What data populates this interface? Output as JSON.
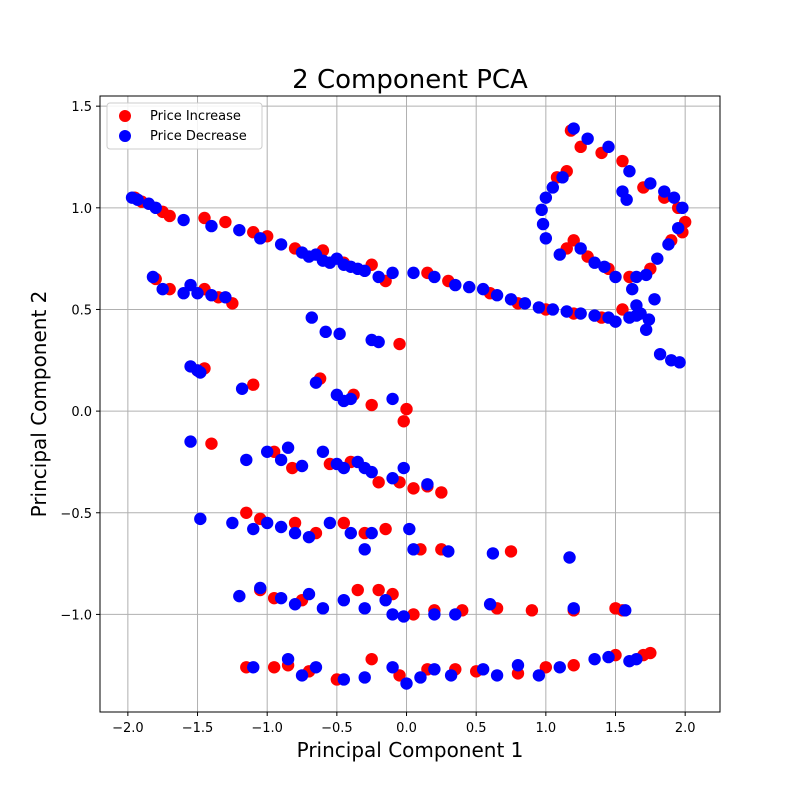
{
  "chart_data": {
    "type": "scatter",
    "title": "2 Component PCA",
    "xlabel": "Principal Component 1",
    "ylabel": "Principal Component 2",
    "xlim": [
      -2.2,
      2.25
    ],
    "ylim": [
      -1.48,
      1.55
    ],
    "x_ticks": [
      -2.0,
      -1.5,
      -1.0,
      -0.5,
      0.0,
      0.5,
      1.0,
      1.5,
      2.0
    ],
    "x_tick_labels": [
      "−2.0",
      "−1.5",
      "−1.0",
      "−0.5",
      "0.0",
      "0.5",
      "1.0",
      "1.5",
      "2.0"
    ],
    "y_ticks": [
      -1.0,
      -0.5,
      0.0,
      0.5,
      1.0,
      1.5
    ],
    "y_tick_labels": [
      "−1.0",
      "−0.5",
      "0.0",
      "0.5",
      "1.0",
      "1.5"
    ],
    "grid": true,
    "legend_position": "top-left",
    "series": [
      {
        "name": "Price Increase",
        "color": "#ff0000",
        "points": [
          [
            -1.95,
            1.05
          ],
          [
            -1.9,
            1.03
          ],
          [
            -1.75,
            0.98
          ],
          [
            -1.7,
            0.96
          ],
          [
            -1.45,
            0.95
          ],
          [
            -1.3,
            0.93
          ],
          [
            -1.1,
            0.88
          ],
          [
            -1.0,
            0.86
          ],
          [
            -0.8,
            0.8
          ],
          [
            -0.6,
            0.79
          ],
          [
            -0.45,
            0.73
          ],
          [
            -0.25,
            0.72
          ],
          [
            -0.15,
            0.64
          ],
          [
            0.15,
            0.68
          ],
          [
            0.3,
            0.64
          ],
          [
            0.6,
            0.58
          ],
          [
            0.8,
            0.53
          ],
          [
            1.0,
            0.5
          ],
          [
            1.2,
            0.48
          ],
          [
            1.4,
            0.46
          ],
          [
            1.55,
            0.5
          ],
          [
            1.18,
            1.38
          ],
          [
            1.25,
            1.3
          ],
          [
            1.4,
            1.27
          ],
          [
            1.55,
            1.23
          ],
          [
            1.7,
            1.1
          ],
          [
            1.85,
            1.05
          ],
          [
            1.95,
            1.0
          ],
          [
            2.0,
            0.93
          ],
          [
            1.98,
            0.88
          ],
          [
            1.9,
            0.84
          ],
          [
            1.75,
            0.7
          ],
          [
            1.6,
            0.66
          ],
          [
            1.45,
            0.7
          ],
          [
            1.3,
            0.76
          ],
          [
            1.2,
            0.84
          ],
          [
            1.15,
            0.8
          ],
          [
            1.08,
            1.15
          ],
          [
            1.15,
            1.18
          ],
          [
            -1.8,
            0.65
          ],
          [
            -1.7,
            0.6
          ],
          [
            -1.45,
            0.6
          ],
          [
            -1.35,
            0.56
          ],
          [
            -1.25,
            0.53
          ],
          [
            -1.5,
            0.2
          ],
          [
            -1.45,
            0.21
          ],
          [
            -1.1,
            0.13
          ],
          [
            -0.62,
            0.16
          ],
          [
            -0.38,
            0.08
          ],
          [
            -0.25,
            0.03
          ],
          [
            -0.05,
            0.33
          ],
          [
            0.0,
            0.01
          ],
          [
            -0.02,
            -0.05
          ],
          [
            -1.4,
            -0.16
          ],
          [
            -0.95,
            -0.2
          ],
          [
            -0.82,
            -0.28
          ],
          [
            -0.55,
            -0.26
          ],
          [
            -0.4,
            -0.25
          ],
          [
            -0.2,
            -0.35
          ],
          [
            -0.05,
            -0.35
          ],
          [
            0.05,
            -0.38
          ],
          [
            0.15,
            -0.37
          ],
          [
            0.25,
            -0.4
          ],
          [
            -1.15,
            -0.5
          ],
          [
            -1.05,
            -0.53
          ],
          [
            -0.8,
            -0.55
          ],
          [
            -0.65,
            -0.6
          ],
          [
            -0.45,
            -0.55
          ],
          [
            -0.3,
            -0.6
          ],
          [
            -0.15,
            -0.58
          ],
          [
            0.1,
            -0.68
          ],
          [
            0.25,
            -0.68
          ],
          [
            0.75,
            -0.69
          ],
          [
            -1.05,
            -0.88
          ],
          [
            -0.95,
            -0.92
          ],
          [
            -0.75,
            -0.93
          ],
          [
            -0.35,
            -0.88
          ],
          [
            -0.2,
            -0.88
          ],
          [
            -0.1,
            -0.9
          ],
          [
            0.05,
            -1.0
          ],
          [
            0.2,
            -0.98
          ],
          [
            0.4,
            -0.98
          ],
          [
            0.65,
            -0.97
          ],
          [
            0.9,
            -0.98
          ],
          [
            1.2,
            -0.98
          ],
          [
            1.5,
            -0.97
          ],
          [
            1.55,
            -0.98
          ],
          [
            -1.15,
            -1.26
          ],
          [
            -0.95,
            -1.26
          ],
          [
            -0.85,
            -1.25
          ],
          [
            -0.7,
            -1.28
          ],
          [
            -0.5,
            -1.32
          ],
          [
            -0.25,
            -1.22
          ],
          [
            -0.05,
            -1.3
          ],
          [
            0.15,
            -1.27
          ],
          [
            0.35,
            -1.27
          ],
          [
            0.5,
            -1.28
          ],
          [
            0.8,
            -1.29
          ],
          [
            1.0,
            -1.26
          ],
          [
            1.2,
            -1.25
          ],
          [
            1.5,
            -1.2
          ],
          [
            1.7,
            -1.2
          ],
          [
            1.75,
            -1.19
          ]
        ]
      },
      {
        "name": "Price Decrease",
        "color": "#0000ff",
        "points": [
          [
            -1.97,
            1.05
          ],
          [
            -1.93,
            1.04
          ],
          [
            -1.85,
            1.02
          ],
          [
            -1.8,
            1.0
          ],
          [
            -1.6,
            0.94
          ],
          [
            -1.4,
            0.91
          ],
          [
            -1.2,
            0.89
          ],
          [
            -1.05,
            0.85
          ],
          [
            -0.9,
            0.82
          ],
          [
            -0.75,
            0.78
          ],
          [
            -0.7,
            0.76
          ],
          [
            -0.65,
            0.77
          ],
          [
            -0.6,
            0.74
          ],
          [
            -0.55,
            0.73
          ],
          [
            -0.5,
            0.75
          ],
          [
            -0.45,
            0.72
          ],
          [
            -0.4,
            0.71
          ],
          [
            -0.35,
            0.7
          ],
          [
            -0.3,
            0.69
          ],
          [
            -0.2,
            0.66
          ],
          [
            -0.1,
            0.68
          ],
          [
            0.05,
            0.68
          ],
          [
            0.2,
            0.66
          ],
          [
            0.35,
            0.62
          ],
          [
            0.45,
            0.61
          ],
          [
            0.55,
            0.6
          ],
          [
            0.65,
            0.57
          ],
          [
            0.75,
            0.55
          ],
          [
            0.85,
            0.53
          ],
          [
            0.95,
            0.51
          ],
          [
            1.05,
            0.5
          ],
          [
            1.15,
            0.49
          ],
          [
            1.25,
            0.48
          ],
          [
            1.35,
            0.47
          ],
          [
            1.45,
            0.46
          ],
          [
            1.5,
            0.44
          ],
          [
            1.6,
            0.46
          ],
          [
            1.65,
            0.47
          ],
          [
            1.2,
            1.39
          ],
          [
            1.3,
            1.34
          ],
          [
            1.45,
            1.3
          ],
          [
            1.6,
            1.18
          ],
          [
            1.55,
            1.08
          ],
          [
            1.58,
            1.04
          ],
          [
            1.75,
            1.12
          ],
          [
            1.85,
            1.08
          ],
          [
            1.92,
            1.05
          ],
          [
            1.98,
            1.0
          ],
          [
            1.95,
            0.9
          ],
          [
            1.88,
            0.82
          ],
          [
            1.8,
            0.75
          ],
          [
            1.72,
            0.67
          ],
          [
            1.78,
            0.55
          ],
          [
            1.74,
            0.45
          ],
          [
            1.72,
            0.4
          ],
          [
            1.82,
            0.28
          ],
          [
            1.9,
            0.25
          ],
          [
            1.96,
            0.24
          ],
          [
            1.65,
            0.66
          ],
          [
            1.62,
            0.6
          ],
          [
            1.65,
            0.52
          ],
          [
            1.68,
            0.48
          ],
          [
            1.5,
            0.66
          ],
          [
            1.42,
            0.71
          ],
          [
            1.35,
            0.73
          ],
          [
            1.25,
            0.8
          ],
          [
            1.1,
            0.77
          ],
          [
            1.0,
            0.85
          ],
          [
            0.98,
            0.92
          ],
          [
            0.97,
            0.99
          ],
          [
            1.0,
            1.05
          ],
          [
            1.05,
            1.1
          ],
          [
            1.12,
            1.15
          ],
          [
            -1.82,
            0.66
          ],
          [
            -1.75,
            0.6
          ],
          [
            -1.6,
            0.58
          ],
          [
            -1.55,
            0.62
          ],
          [
            -1.5,
            0.58
          ],
          [
            -1.4,
            0.57
          ],
          [
            -1.3,
            0.56
          ],
          [
            -1.55,
            0.22
          ],
          [
            -1.5,
            0.2
          ],
          [
            -1.48,
            0.19
          ],
          [
            -1.18,
            0.11
          ],
          [
            -0.68,
            0.46
          ],
          [
            -0.58,
            0.39
          ],
          [
            -0.48,
            0.38
          ],
          [
            -0.25,
            0.35
          ],
          [
            -0.2,
            0.34
          ],
          [
            -0.65,
            0.14
          ],
          [
            -0.5,
            0.08
          ],
          [
            -0.45,
            0.05
          ],
          [
            -0.4,
            0.06
          ],
          [
            -0.1,
            0.06
          ],
          [
            -1.55,
            -0.15
          ],
          [
            -1.15,
            -0.24
          ],
          [
            -1.0,
            -0.2
          ],
          [
            -0.9,
            -0.24
          ],
          [
            -0.85,
            -0.18
          ],
          [
            -0.75,
            -0.27
          ],
          [
            -0.6,
            -0.2
          ],
          [
            -0.5,
            -0.26
          ],
          [
            -0.45,
            -0.28
          ],
          [
            -0.35,
            -0.25
          ],
          [
            -0.3,
            -0.28
          ],
          [
            -0.25,
            -0.3
          ],
          [
            -0.1,
            -0.33
          ],
          [
            -0.02,
            -0.28
          ],
          [
            0.15,
            -0.36
          ],
          [
            -1.48,
            -0.53
          ],
          [
            -1.25,
            -0.55
          ],
          [
            -1.1,
            -0.58
          ],
          [
            -1.0,
            -0.55
          ],
          [
            -0.9,
            -0.57
          ],
          [
            -0.8,
            -0.6
          ],
          [
            -0.7,
            -0.62
          ],
          [
            -0.55,
            -0.55
          ],
          [
            -0.4,
            -0.6
          ],
          [
            -0.3,
            -0.68
          ],
          [
            -0.25,
            -0.6
          ],
          [
            0.02,
            -0.58
          ],
          [
            0.05,
            -0.68
          ],
          [
            0.3,
            -0.69
          ],
          [
            0.62,
            -0.7
          ],
          [
            1.17,
            -0.72
          ],
          [
            -1.2,
            -0.91
          ],
          [
            -1.05,
            -0.87
          ],
          [
            -0.9,
            -0.92
          ],
          [
            -0.8,
            -0.95
          ],
          [
            -0.7,
            -0.9
          ],
          [
            -0.6,
            -0.97
          ],
          [
            -0.45,
            -0.93
          ],
          [
            -0.3,
            -0.97
          ],
          [
            -0.15,
            -0.93
          ],
          [
            -0.1,
            -1.0
          ],
          [
            -0.02,
            -1.01
          ],
          [
            0.2,
            -1.0
          ],
          [
            0.35,
            -1.0
          ],
          [
            0.6,
            -0.95
          ],
          [
            1.2,
            -0.97
          ],
          [
            1.57,
            -0.98
          ],
          [
            -1.1,
            -1.26
          ],
          [
            -0.85,
            -1.22
          ],
          [
            -0.75,
            -1.3
          ],
          [
            -0.65,
            -1.26
          ],
          [
            -0.45,
            -1.32
          ],
          [
            -0.3,
            -1.31
          ],
          [
            -0.1,
            -1.26
          ],
          [
            0.0,
            -1.34
          ],
          [
            0.1,
            -1.31
          ],
          [
            0.2,
            -1.27
          ],
          [
            0.32,
            -1.3
          ],
          [
            0.55,
            -1.27
          ],
          [
            0.65,
            -1.3
          ],
          [
            0.8,
            -1.25
          ],
          [
            0.95,
            -1.3
          ],
          [
            1.1,
            -1.26
          ],
          [
            1.35,
            -1.22
          ],
          [
            1.45,
            -1.21
          ],
          [
            1.6,
            -1.23
          ],
          [
            1.65,
            -1.22
          ]
        ]
      }
    ]
  }
}
